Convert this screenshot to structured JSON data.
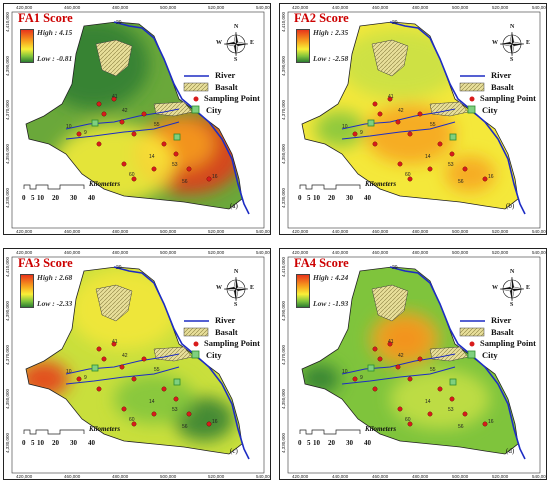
{
  "panels": [
    {
      "title": "FA1 Score",
      "high": "High : 4.15",
      "low": "Low : -0.81",
      "tag": "(a)",
      "x_ticks": [
        "420,000",
        "460,000",
        "480,000",
        "500,000",
        "520,000",
        "540,000"
      ],
      "y_ticks": [
        "4,410,000",
        "4,390,000",
        "4,370,000",
        "4,350,000",
        "4,330,000"
      ]
    },
    {
      "title": "FA2 Score",
      "high": "High : 2.35",
      "low": "Low : -2.58",
      "tag": "(b)",
      "x_ticks": [
        "420,000",
        "440,000",
        "460,000",
        "480,000",
        "500,000",
        "520,000",
        "540,000"
      ],
      "y_ticks": [
        "4,410,000",
        "4,390,000",
        "4,370,000",
        "4,350,000",
        "4,330,000"
      ]
    },
    {
      "title": "FA3 Score",
      "high": "High : 2.68",
      "low": "Low : -2.33",
      "tag": "(c)",
      "x_ticks": [
        "420,000",
        "460,000",
        "480,000",
        "500,000",
        "520,000",
        "540,000"
      ],
      "y_ticks": [
        "4,410,000",
        "4,390,000",
        "4,370,000",
        "4,350,000",
        "4,330,000"
      ]
    },
    {
      "title": "FA4 Score",
      "high": "High : 4.24",
      "low": "Low : -1.93",
      "tag": "(d)",
      "x_ticks": [
        "420,000",
        "440,000",
        "460,000",
        "480,000",
        "500,000",
        "520,000",
        "540,000"
      ],
      "y_ticks": [
        "4,410,000",
        "4,390,000",
        "4,370,000",
        "4,350,000",
        "4,330,000"
      ]
    }
  ],
  "legend": {
    "river": "River",
    "basalt": "Basalt",
    "sampling": "Sampling Point",
    "city": "City"
  },
  "scale": {
    "unit": "Kilometers",
    "numbers": [
      "0",
      "5",
      "10",
      "20",
      "30",
      "40"
    ]
  },
  "compass": {
    "n": "N",
    "s": "S",
    "e": "E",
    "w": "W"
  },
  "station_labels": [
    "29",
    "41",
    "42",
    "10",
    "16",
    "14",
    "53",
    "56",
    "60",
    "55",
    "9"
  ],
  "colors": {
    "river": "#1d2cc4",
    "basalt": "#e8df9a",
    "sampling": "#d81c1c",
    "city": "#2e8b2e"
  }
}
